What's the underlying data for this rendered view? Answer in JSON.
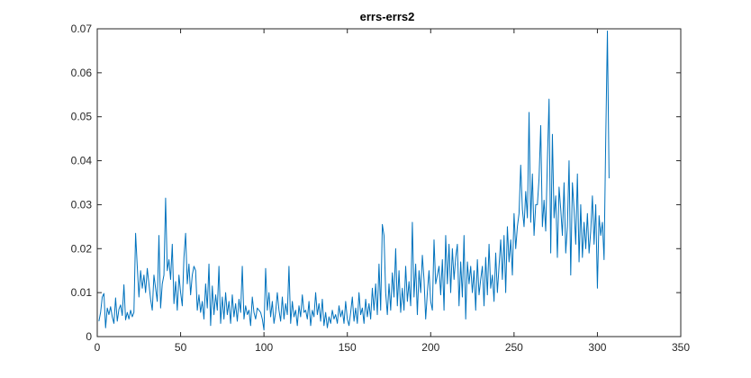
{
  "chart_data": {
    "type": "line",
    "title": "errs-errs2",
    "xlabel": "",
    "ylabel": "",
    "xlim": [
      0,
      350
    ],
    "ylim": [
      0,
      0.07
    ],
    "x_ticks": [
      0,
      50,
      100,
      150,
      200,
      250,
      300,
      350
    ],
    "x_tick_labels": [
      "0",
      "50",
      "100",
      "150",
      "200",
      "250",
      "300",
      "350"
    ],
    "y_ticks": [
      0,
      0.01,
      0.02,
      0.03,
      0.04,
      0.05,
      0.06,
      0.07
    ],
    "y_tick_labels": [
      "0",
      "0.01",
      "0.02",
      "0.03",
      "0.04",
      "0.05",
      "0.06",
      "0.07"
    ],
    "grid": false,
    "box": true,
    "series": [
      {
        "color": "#0072BD",
        "x_start": 1,
        "x_step": 1,
        "values": [
          0.0035,
          0.0055,
          0.009,
          0.0098,
          0.002,
          0.0065,
          0.005,
          0.0068,
          0.0045,
          0.003,
          0.0088,
          0.0035,
          0.0062,
          0.0072,
          0.0048,
          0.0118,
          0.0038,
          0.0055,
          0.004,
          0.006,
          0.0045,
          0.0055,
          0.0235,
          0.016,
          0.009,
          0.015,
          0.011,
          0.014,
          0.01,
          0.0155,
          0.012,
          0.0085,
          0.006,
          0.014,
          0.011,
          0.008,
          0.023,
          0.0065,
          0.012,
          0.014,
          0.0315,
          0.015,
          0.0175,
          0.013,
          0.021,
          0.0075,
          0.0125,
          0.006,
          0.014,
          0.01,
          0.007,
          0.018,
          0.0235,
          0.012,
          0.0165,
          0.0095,
          0.014,
          0.016,
          0.015,
          0.006,
          0.0095,
          0.0055,
          0.008,
          0.004,
          0.012,
          0.0065,
          0.0165,
          0.0025,
          0.0115,
          0.005,
          0.0095,
          0.006,
          0.016,
          0.003,
          0.009,
          0.004,
          0.01,
          0.005,
          0.008,
          0.003,
          0.0095,
          0.0045,
          0.0075,
          0.0035,
          0.0085,
          0.0055,
          0.016,
          0.004,
          0.007,
          0.005,
          0.006,
          0.0025,
          0.009,
          0.0055,
          0.004,
          0.0065,
          0.006,
          0.0055,
          0.004,
          0.0015,
          0.0155,
          0.006,
          0.01,
          0.0045,
          0.008,
          0.003,
          0.0055,
          0.01,
          0.006,
          0.0035,
          0.009,
          0.004,
          0.0075,
          0.005,
          0.016,
          0.003,
          0.008,
          0.0045,
          0.006,
          0.0025,
          0.007,
          0.0045,
          0.0095,
          0.0055,
          0.006,
          0.004,
          0.008,
          0.0025,
          0.006,
          0.0045,
          0.01,
          0.005,
          0.0075,
          0.0035,
          0.0085,
          0.0025,
          0.0055,
          0.002,
          0.0045,
          0.003,
          0.006,
          0.004,
          0.005,
          0.003,
          0.007,
          0.0045,
          0.006,
          0.003,
          0.008,
          0.004,
          0.0025,
          0.0055,
          0.009,
          0.0035,
          0.0065,
          0.003,
          0.01,
          0.005,
          0.0065,
          0.003,
          0.0085,
          0.0045,
          0.0075,
          0.004,
          0.011,
          0.006,
          0.012,
          0.005,
          0.0165,
          0.006,
          0.0255,
          0.023,
          0.01,
          0.005,
          0.012,
          0.006,
          0.0145,
          0.009,
          0.02,
          0.007,
          0.015,
          0.0055,
          0.011,
          0.006,
          0.016,
          0.008,
          0.0125,
          0.007,
          0.026,
          0.009,
          0.0165,
          0.005,
          0.015,
          0.01,
          0.0185,
          0.013,
          0.004,
          0.01,
          0.015,
          0.008,
          0.006,
          0.022,
          0.012,
          0.014,
          0.016,
          0.0095,
          0.0175,
          0.006,
          0.023,
          0.012,
          0.021,
          0.01,
          0.02,
          0.013,
          0.018,
          0.021,
          0.007,
          0.017,
          0.009,
          0.023,
          0.004,
          0.017,
          0.012,
          0.016,
          0.01,
          0.015,
          0.006,
          0.0175,
          0.0095,
          0.013,
          0.016,
          0.007,
          0.018,
          0.0095,
          0.021,
          0.011,
          0.014,
          0.008,
          0.019,
          0.01,
          0.016,
          0.022,
          0.013,
          0.023,
          0.01,
          0.025,
          0.017,
          0.022,
          0.014,
          0.028,
          0.02,
          0.025,
          0.028,
          0.039,
          0.029,
          0.025,
          0.033,
          0.027,
          0.051,
          0.026,
          0.037,
          0.023,
          0.03,
          0.03,
          0.036,
          0.048,
          0.025,
          0.031,
          0.024,
          0.04,
          0.054,
          0.019,
          0.046,
          0.027,
          0.032,
          0.018,
          0.034,
          0.029,
          0.023,
          0.035,
          0.019,
          0.025,
          0.04,
          0.014,
          0.035,
          0.029,
          0.021,
          0.037,
          0.017,
          0.03,
          0.018,
          0.026,
          0.02,
          0.028,
          0.019,
          0.024,
          0.032,
          0.021,
          0.03,
          0.011,
          0.0275,
          0.023,
          0.026,
          0.0175,
          0.045,
          0.0695,
          0.036
        ]
      }
    ]
  }
}
